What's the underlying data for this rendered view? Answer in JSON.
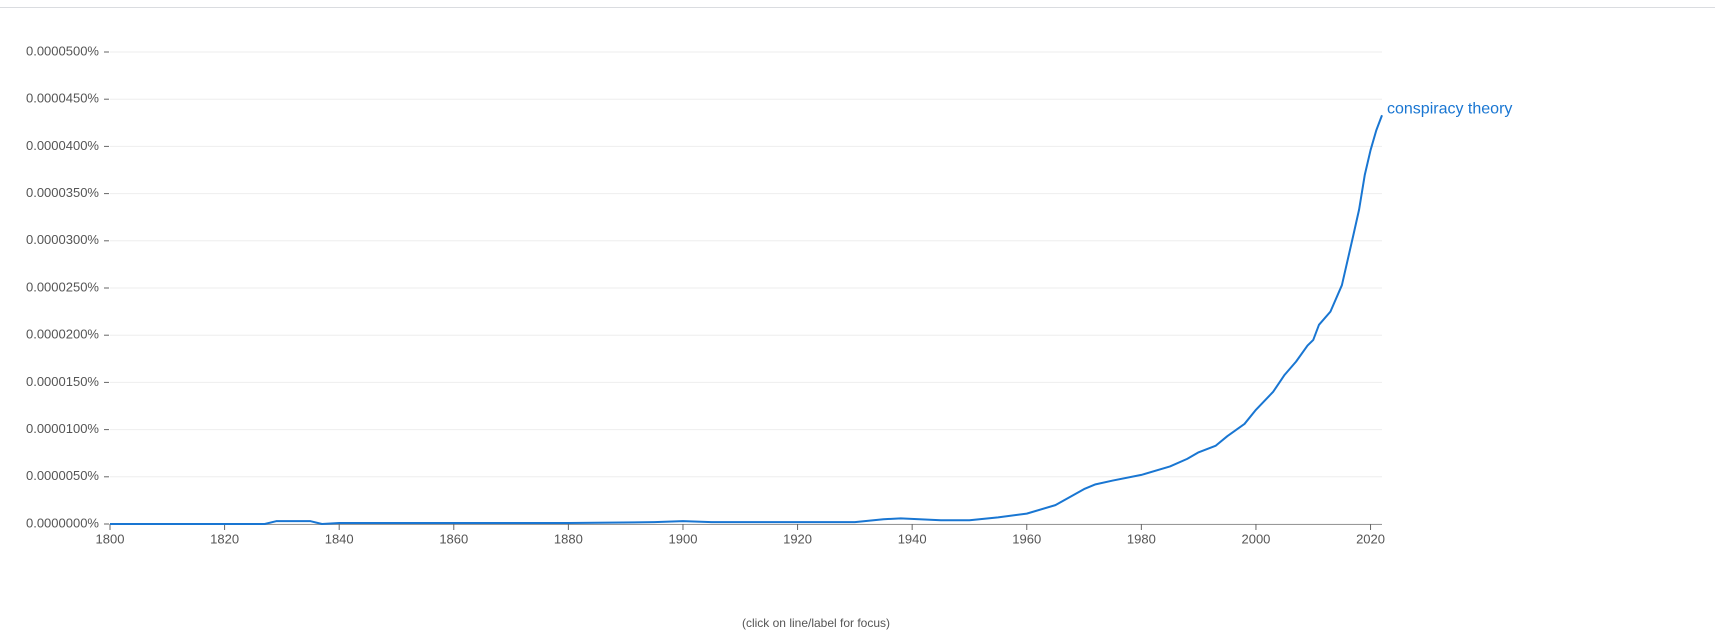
{
  "chart_data": {
    "type": "line",
    "footer": "(click on line/label for focus)",
    "x": [
      1800,
      1827,
      1829,
      1835,
      1837,
      1840,
      1860,
      1880,
      1895,
      1900,
      1905,
      1920,
      1930,
      1935,
      1938,
      1945,
      1950,
      1955,
      1960,
      1965,
      1970,
      1972,
      1975,
      1980,
      1985,
      1988,
      1990,
      1993,
      1995,
      1998,
      2000,
      2003,
      2005,
      2007,
      2009,
      2010,
      2011,
      2013,
      2015,
      2017,
      2018,
      2019,
      2020,
      2021,
      2022
    ],
    "series": [
      {
        "name": "conspiracy theory",
        "color": "#1976d2",
        "values": [
          0,
          0,
          3e-07,
          3e-07,
          0,
          1e-07,
          1e-07,
          1e-07,
          2e-07,
          3e-07,
          2e-07,
          2e-07,
          2e-07,
          5e-07,
          6e-07,
          4e-07,
          4e-07,
          7e-07,
          1.1e-06,
          2e-06,
          3.7e-06,
          4.2e-06,
          4.6e-06,
          5.2e-06,
          6.1e-06,
          6.9e-06,
          7.6e-06,
          8.3e-06,
          9.3e-06,
          1.06e-05,
          1.21e-05,
          1.4e-05,
          1.58e-05,
          1.72e-05,
          1.89e-05,
          1.95e-05,
          2.11e-05,
          2.25e-05,
          2.53e-05,
          3.06e-05,
          3.33e-05,
          3.7e-05,
          3.96e-05,
          4.17e-05,
          4.33e-05
        ]
      }
    ],
    "xlim": [
      1800,
      2022
    ],
    "xticks": [
      1800,
      1820,
      1840,
      1860,
      1880,
      1900,
      1920,
      1940,
      1960,
      1980,
      2000,
      2020
    ],
    "ylim": [
      0,
      5e-05
    ],
    "yticks": [
      {
        "value": 0,
        "label": "0.0000000%"
      },
      {
        "value": 5e-06,
        "label": "0.0000050%"
      },
      {
        "value": 1e-05,
        "label": "0.0000100%"
      },
      {
        "value": 1.5e-05,
        "label": "0.0000150%"
      },
      {
        "value": 2e-05,
        "label": "0.0000200%"
      },
      {
        "value": 2.5e-05,
        "label": "0.0000250%"
      },
      {
        "value": 3e-05,
        "label": "0.0000300%"
      },
      {
        "value": 3.5e-05,
        "label": "0.0000350%"
      },
      {
        "value": 4e-05,
        "label": "0.0000400%"
      },
      {
        "value": 4.5e-05,
        "label": "0.0000450%"
      },
      {
        "value": 5e-05,
        "label": "0.0000500%"
      }
    ],
    "grid": true
  }
}
